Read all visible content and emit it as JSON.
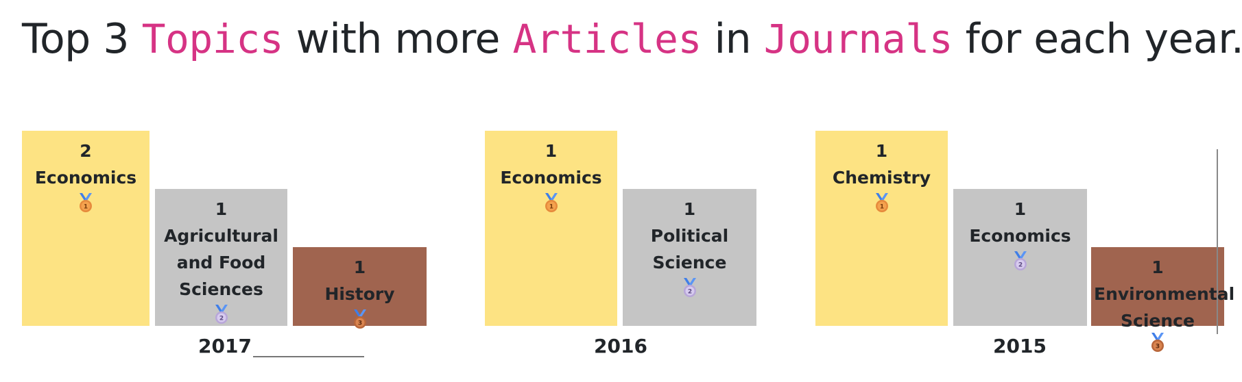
{
  "title": {
    "pre": "Top 3 ",
    "w1": "Topics",
    "mid1": " with more ",
    "w2": "Articles",
    "mid2": " in ",
    "w3": "Journals",
    "post": " for each year."
  },
  "colors": {
    "gold": "#fde383",
    "silver": "#c5c5c5",
    "bronze": "#a0644f",
    "code": "#d63384"
  },
  "chart_data": {
    "type": "bar",
    "title": "Top 3 Topics with more Articles in Journals for each year.",
    "groups": [
      {
        "year": "2017",
        "items": [
          {
            "rank": 1,
            "topic": "Economics",
            "value": 2,
            "medal": "gold-medal-icon"
          },
          {
            "rank": 2,
            "topic": "Agricultural and Food Sciences",
            "value": 1,
            "medal": "silver-medal-icon"
          },
          {
            "rank": 3,
            "topic": "History",
            "value": 1,
            "medal": "bronze-medal-icon"
          }
        ]
      },
      {
        "year": "2016",
        "items": [
          {
            "rank": 1,
            "topic": "Economics",
            "value": 1,
            "medal": "gold-medal-icon"
          },
          {
            "rank": 2,
            "topic": "Political Science",
            "value": 1,
            "medal": "silver-medal-icon"
          }
        ]
      },
      {
        "year": "2015",
        "items": [
          {
            "rank": 1,
            "topic": "Chemistry",
            "value": 1,
            "medal": "gold-medal-icon"
          },
          {
            "rank": 2,
            "topic": "Economics",
            "value": 1,
            "medal": "silver-medal-icon"
          },
          {
            "rank": 3,
            "topic": "Environmental Science",
            "value": 1,
            "medal": "bronze-medal-icon"
          }
        ]
      }
    ]
  }
}
